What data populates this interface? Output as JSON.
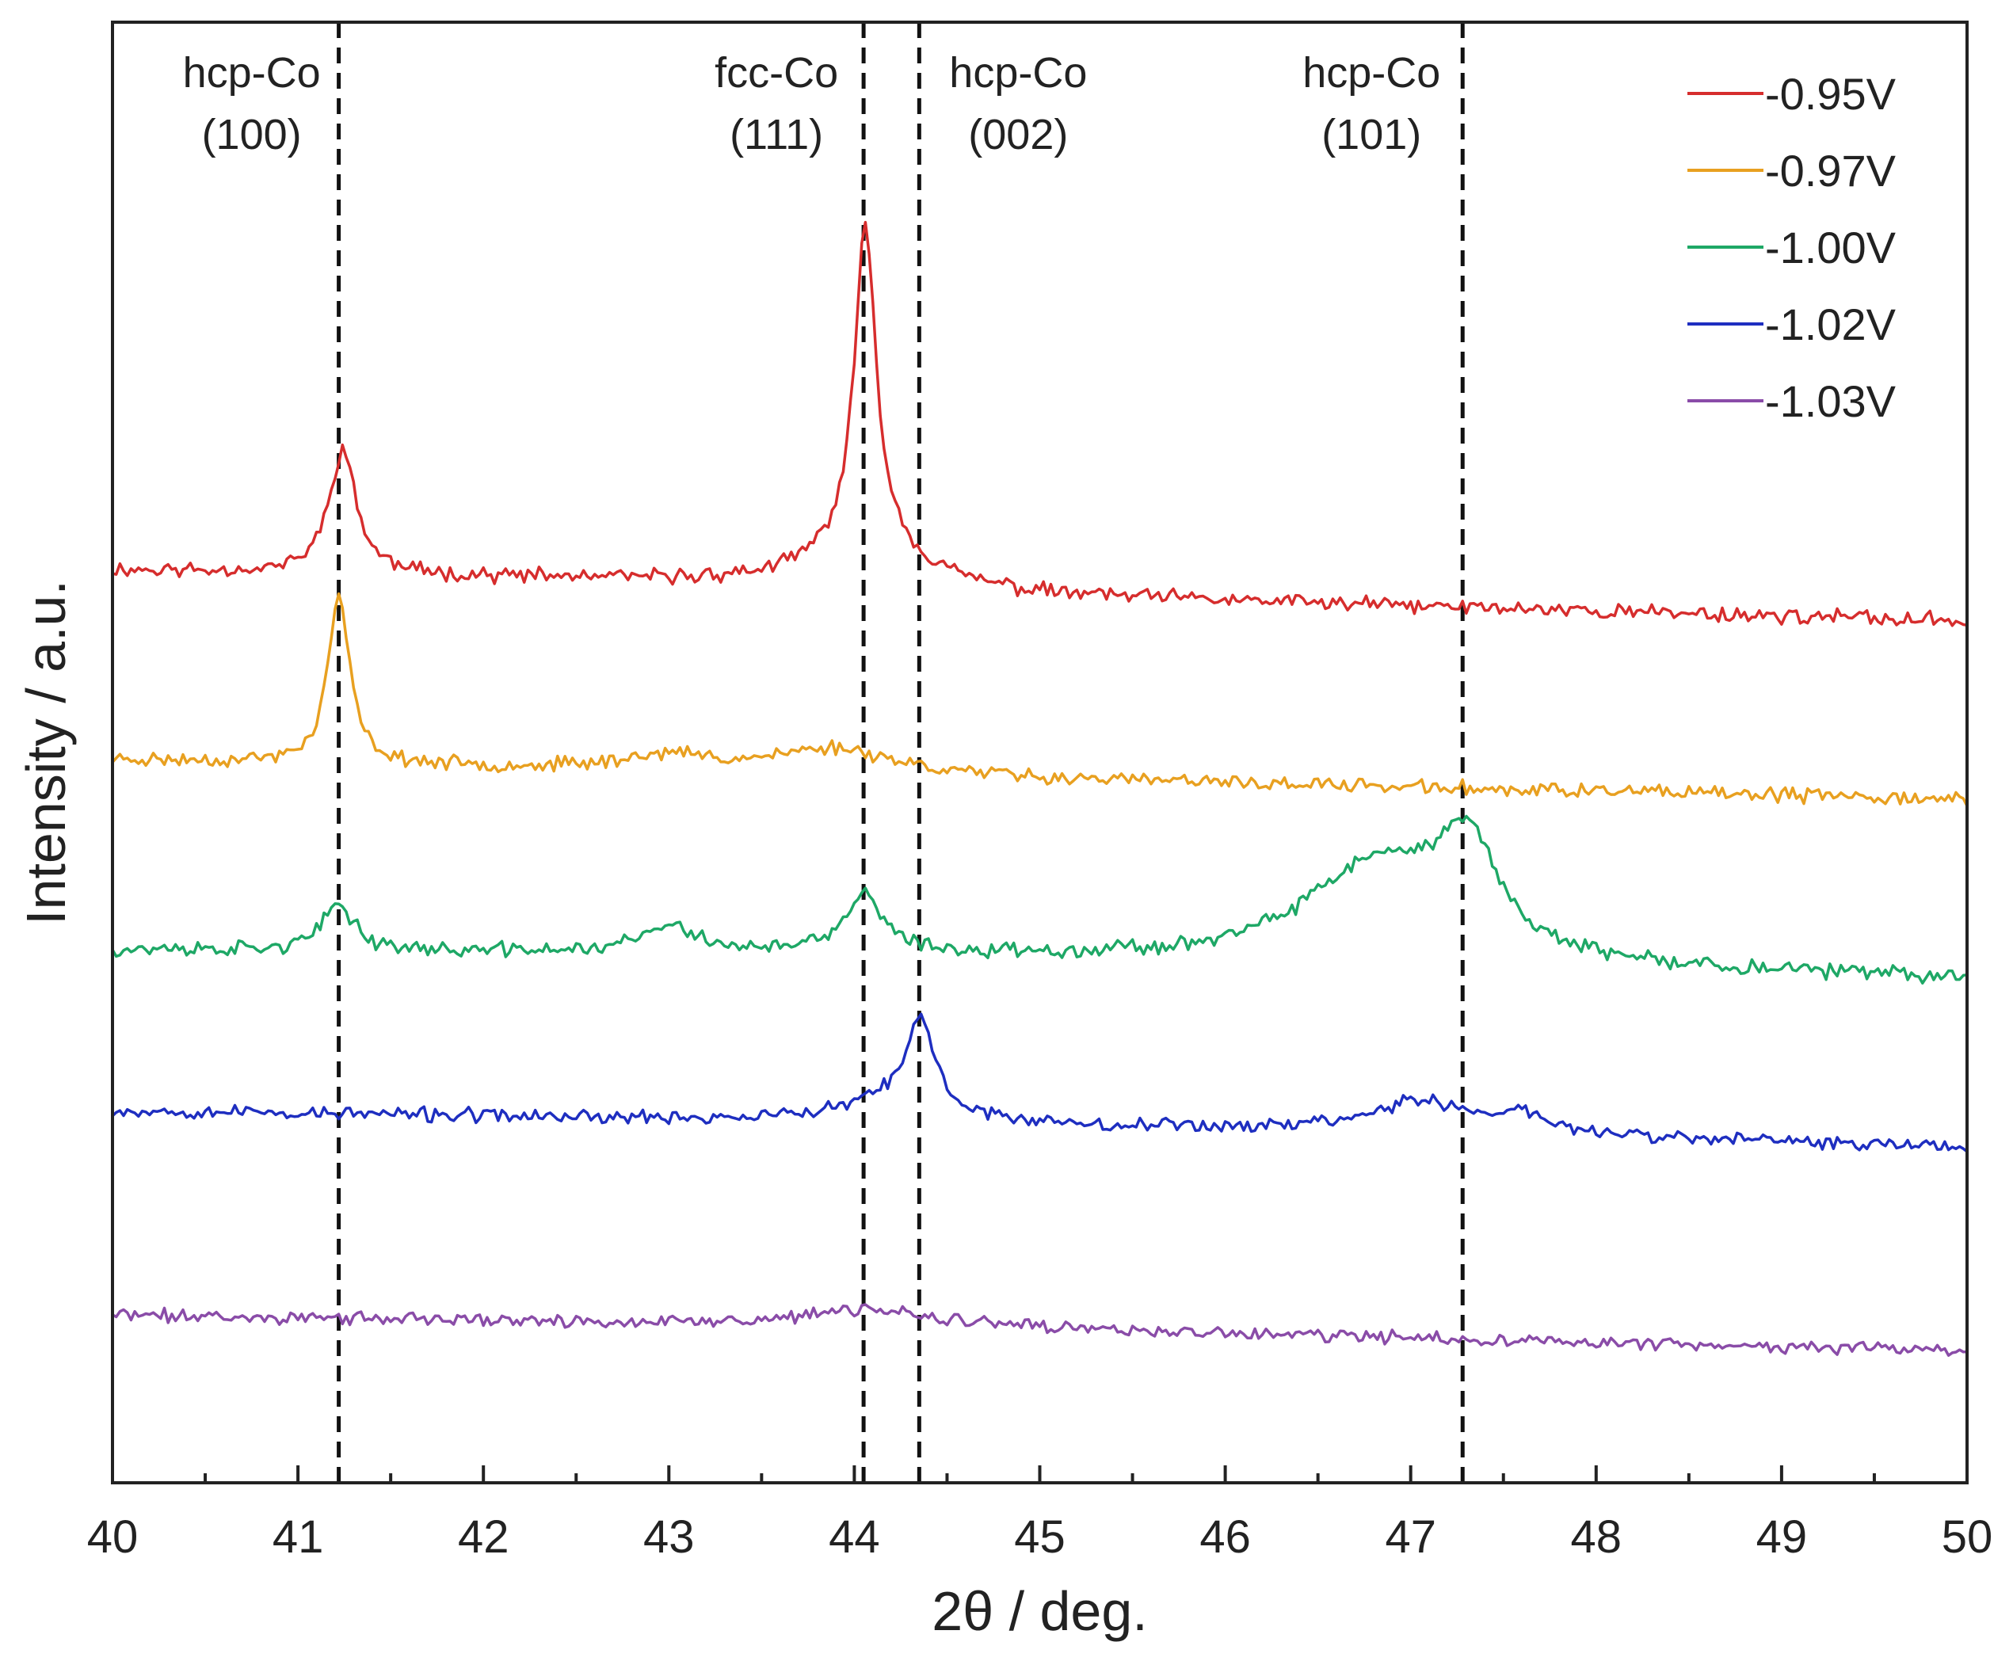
{
  "chart_data": {
    "type": "line",
    "title": "",
    "xlabel": "2θ / deg.",
    "ylabel": "Intensity / a.u.",
    "xlim": [
      40,
      50
    ],
    "ylim": [
      0,
      100
    ],
    "y_ticks_shown": false,
    "x_ticks": [
      40,
      41,
      42,
      43,
      44,
      45,
      46,
      47,
      48,
      49,
      50
    ],
    "x_tick_labels": [
      "40",
      "41",
      "42",
      "43",
      "44",
      "45",
      "46",
      "47",
      "48",
      "49",
      "50"
    ],
    "legend_position": "top-right",
    "reference_lines": [
      {
        "x": 41.22,
        "phase": "hcp-Co",
        "plane": "(100)"
      },
      {
        "x": 44.05,
        "phase": "fcc-Co",
        "plane": "(111)"
      },
      {
        "x": 44.35,
        "phase": "hcp-Co",
        "plane": "(002)"
      },
      {
        "x": 47.28,
        "phase": "hcp-Co",
        "plane": "(101)"
      }
    ],
    "series": [
      {
        "name": "-0.95V",
        "color": "#d62d2d",
        "noise": 0.65,
        "seed": 11,
        "baseline": [
          [
            40,
            62.5
          ],
          [
            44.3,
            61.4
          ],
          [
            45,
            60.7
          ],
          [
            50,
            59.0
          ]
        ],
        "peaks": [
          {
            "center": 41.24,
            "height": 8.5,
            "width": 0.09
          },
          {
            "center": 44.06,
            "height": 21.5,
            "width": 0.07
          },
          {
            "center": 44.06,
            "height": 3.0,
            "width": 0.3
          }
        ]
      },
      {
        "name": "-0.97V",
        "color": "#e8a020",
        "noise": 0.6,
        "seed": 23,
        "baseline": [
          [
            40,
            49.5
          ],
          [
            50,
            46.8
          ]
        ],
        "peaks": [
          {
            "center": 41.22,
            "height": 11.5,
            "width": 0.07
          },
          {
            "center": 43.9,
            "height": 1.8,
            "width": 0.4
          },
          {
            "center": 43.0,
            "height": 1.0,
            "width": 0.3
          }
        ]
      },
      {
        "name": "-1.00V",
        "color": "#1ea866",
        "noise": 0.65,
        "seed": 37,
        "baseline": [
          [
            40,
            36.5
          ],
          [
            45,
            36.0
          ],
          [
            50,
            34.5
          ]
        ],
        "peaks": [
          {
            "center": 41.22,
            "height": 3.2,
            "width": 0.1
          },
          {
            "center": 44.05,
            "height": 4.0,
            "width": 0.12
          },
          {
            "center": 43.0,
            "height": 1.8,
            "width": 0.18
          },
          {
            "center": 46.8,
            "height": 6.5,
            "width": 0.45
          },
          {
            "center": 47.3,
            "height": 7.5,
            "width": 0.2
          }
        ]
      },
      {
        "name": "-1.02V",
        "color": "#1e2ec0",
        "noise": 0.6,
        "seed": 53,
        "baseline": [
          [
            40,
            25.5
          ],
          [
            45,
            24.5
          ],
          [
            50,
            23.0
          ]
        ],
        "peaks": [
          {
            "center": 44.36,
            "height": 6.0,
            "width": 0.09
          },
          {
            "center": 44.2,
            "height": 1.5,
            "width": 0.3
          },
          {
            "center": 47.05,
            "height": 2.2,
            "width": 0.35
          },
          {
            "center": 47.6,
            "height": 1.2,
            "width": 0.15
          }
        ]
      },
      {
        "name": "-1.03V",
        "color": "#8a4ca8",
        "noise": 0.55,
        "seed": 71,
        "baseline": [
          [
            40,
            11.5
          ],
          [
            45,
            10.5
          ],
          [
            50,
            9.0
          ]
        ],
        "peaks": [
          {
            "center": 44.1,
            "height": 1.2,
            "width": 0.4
          }
        ]
      }
    ]
  }
}
